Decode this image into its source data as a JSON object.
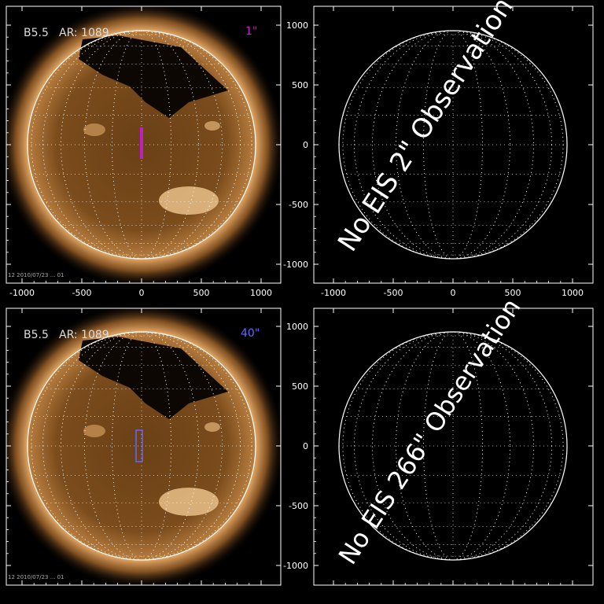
{
  "panels": {
    "top_left": {
      "flare_class": "B5.5",
      "ar_label": "AR: 1089",
      "slit_label": "1\"",
      "slit_color": "#c020c0",
      "timestamp": "12 2010/07/23 ... 01"
    },
    "bottom_left": {
      "flare_class": "B5.5",
      "ar_label": "AR: 1089",
      "slit_label": "40\"",
      "slit_color": "#6666ff",
      "timestamp": "12 2010/07/23 ... 01"
    },
    "top_right": {
      "no_obs_text": "No EIS 2\" Observation"
    },
    "bottom_right": {
      "no_obs_text": "No EIS 266\" Observation"
    }
  },
  "axes": {
    "x_ticks": [
      "-1000",
      "-500",
      "0",
      "500",
      "1000"
    ],
    "y_ticks": [
      "1000",
      "500",
      "0",
      "-500",
      "-1000"
    ]
  },
  "colors": {
    "background": "#000000",
    "axis": "#ffffff",
    "sun_core": "#6e4419",
    "sun_limb": "#c88a48"
  }
}
